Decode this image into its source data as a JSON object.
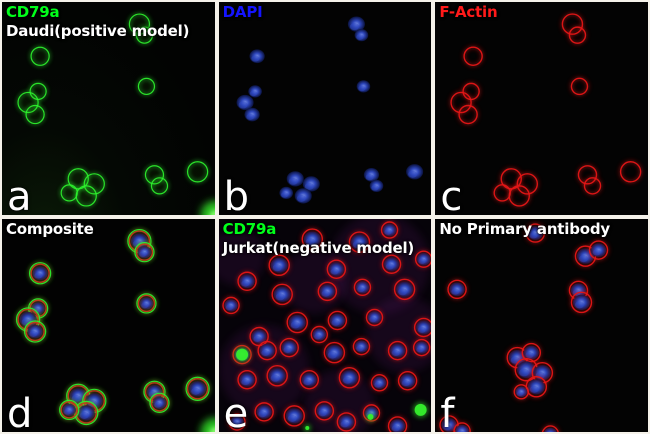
{
  "figure": {
    "description_letters": [
      "a",
      "b",
      "c",
      "d",
      "e",
      "f"
    ],
    "frame_color": "#f5f2ea",
    "panel_background": "#030303"
  },
  "colors": {
    "green_stain": "#2ef52e",
    "blue_stain_core": "#7d95f2",
    "blue_stain_mid": "#2f49c4",
    "blue_stain_edge": "#0a1240",
    "red_stain": "#e41616",
    "haze_purple": "#6a1d7a",
    "debris_green": "#35ef2c"
  },
  "panels": [
    {
      "id": "a",
      "letter": "a",
      "line1": "CD79a",
      "line1_color": "#00ff1a",
      "line2": "Daudi(positive model)",
      "line2_color": "#ffffff",
      "field": "daudi",
      "channels": [
        "green"
      ],
      "corner_glow": true,
      "haze": false,
      "debris": false
    },
    {
      "id": "b",
      "letter": "b",
      "line1": "DAPI",
      "line1_color": "#1414ff",
      "line2": "",
      "line2_color": "#ffffff",
      "field": "daudi",
      "channels": [
        "blue"
      ],
      "corner_glow": false,
      "haze": false,
      "debris": false
    },
    {
      "id": "c",
      "letter": "c",
      "line1": "F-Actin",
      "line1_color": "#ff1a1a",
      "line2": "",
      "line2_color": "#ffffff",
      "field": "daudi",
      "channels": [
        "red"
      ],
      "corner_glow": false,
      "haze": false,
      "debris": false
    },
    {
      "id": "d",
      "letter": "d",
      "line1": "Composite",
      "line1_color": "#ffffff",
      "line2": "",
      "line2_color": "#ffffff",
      "field": "daudi",
      "channels": [
        "blue",
        "red",
        "green"
      ],
      "corner_glow": true,
      "haze": false,
      "debris": false
    },
    {
      "id": "e",
      "letter": "e",
      "line1": "CD79a",
      "line1_color": "#00ff1a",
      "line2": "Jurkat(negative model)",
      "line2_color": "#ffffff",
      "field": "jurkat",
      "channels": [
        "blue",
        "red"
      ],
      "corner_glow": false,
      "haze": true,
      "debris": true
    },
    {
      "id": "f",
      "letter": "f",
      "line1": "No Primary antibody",
      "line1_color": "#ffffff",
      "line2": "",
      "line2_color": "#ffffff",
      "field": "no_primary",
      "channels": [
        "blue",
        "red"
      ],
      "corner_glow": false,
      "haze": false,
      "debris": false
    }
  ],
  "fields": {
    "daudi": [
      [
        137,
        22,
        10
      ],
      [
        142,
        33,
        8
      ],
      [
        38,
        54,
        9
      ],
      [
        36,
        89,
        8
      ],
      [
        26,
        100,
        10
      ],
      [
        33,
        112,
        9
      ],
      [
        144,
        84,
        8
      ],
      [
        76,
        176,
        10
      ],
      [
        92,
        181,
        10
      ],
      [
        84,
        193,
        10
      ],
      [
        67,
        190,
        8
      ],
      [
        152,
        172,
        9
      ],
      [
        157,
        183,
        8
      ],
      [
        195,
        169,
        10
      ]
    ],
    "jurkat": [
      [
        93,
        20,
        10
      ],
      [
        140,
        23,
        10
      ],
      [
        170,
        11,
        8
      ],
      [
        60,
        46,
        10
      ],
      [
        117,
        50,
        9
      ],
      [
        172,
        45,
        9
      ],
      [
        204,
        40,
        8
      ],
      [
        28,
        62,
        9
      ],
      [
        63,
        75,
        10
      ],
      [
        108,
        72,
        9
      ],
      [
        143,
        68,
        8
      ],
      [
        185,
        70,
        10
      ],
      [
        12,
        86,
        8
      ],
      [
        78,
        103,
        10
      ],
      [
        118,
        101,
        9
      ],
      [
        155,
        98,
        8
      ],
      [
        204,
        108,
        9
      ],
      [
        40,
        117,
        9
      ],
      [
        100,
        115,
        8
      ],
      [
        23,
        135,
        9
      ],
      [
        48,
        131,
        9
      ],
      [
        70,
        128,
        9
      ],
      [
        115,
        133,
        10
      ],
      [
        142,
        127,
        8
      ],
      [
        178,
        131,
        9
      ],
      [
        202,
        128,
        8
      ],
      [
        28,
        160,
        9
      ],
      [
        58,
        156,
        10
      ],
      [
        90,
        160,
        9
      ],
      [
        130,
        158,
        10
      ],
      [
        160,
        163,
        8
      ],
      [
        188,
        161,
        9
      ],
      [
        45,
        192,
        9
      ],
      [
        75,
        196,
        10
      ],
      [
        105,
        191,
        9
      ],
      [
        127,
        202,
        9
      ],
      [
        152,
        193,
        8
      ],
      [
        178,
        206,
        9
      ],
      [
        18,
        202,
        8
      ]
    ],
    "no_primary": [
      [
        100,
        14,
        9
      ],
      [
        150,
        37,
        10
      ],
      [
        163,
        31,
        9
      ],
      [
        22,
        70,
        9
      ],
      [
        143,
        71,
        9
      ],
      [
        146,
        83,
        10
      ],
      [
        82,
        138,
        10
      ],
      [
        96,
        133,
        9
      ],
      [
        91,
        150,
        11
      ],
      [
        107,
        153,
        10
      ],
      [
        101,
        167,
        10
      ],
      [
        86,
        172,
        7
      ],
      [
        14,
        205,
        9
      ],
      [
        27,
        211,
        8
      ],
      [
        115,
        214,
        8
      ]
    ]
  },
  "debris_spots": [
    [
      23,
      135,
      6
    ],
    [
      201,
      190,
      6
    ],
    [
      151,
      197,
      3
    ],
    [
      88,
      208,
      2
    ]
  ],
  "haze_patches": [
    [
      160,
      45,
      50
    ],
    [
      45,
      150,
      45
    ],
    [
      185,
      115,
      38
    ],
    [
      95,
      62,
      32
    ],
    [
      18,
      38,
      28
    ],
    [
      120,
      185,
      35
    ]
  ]
}
